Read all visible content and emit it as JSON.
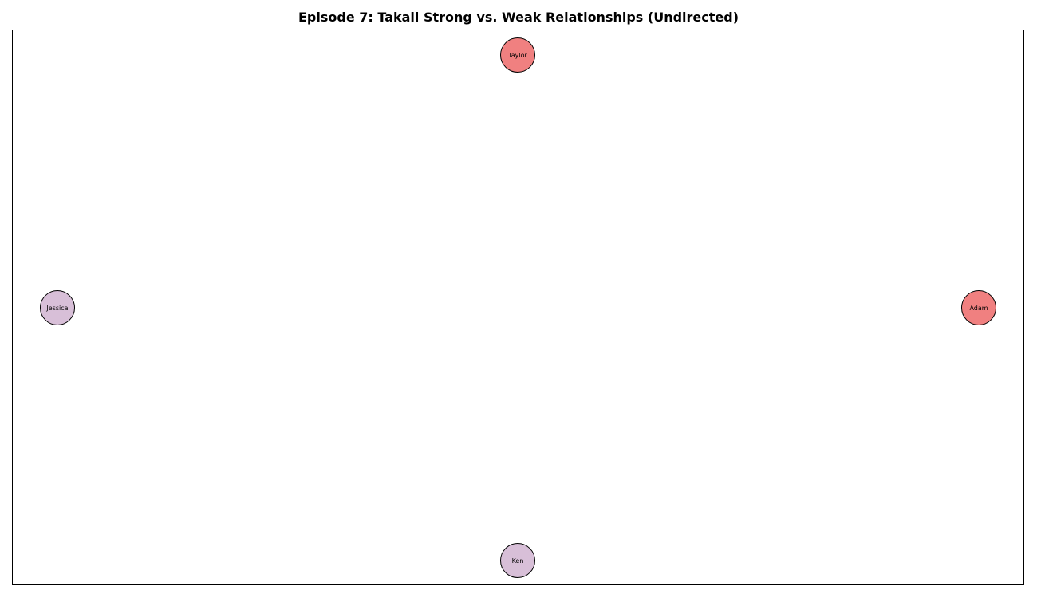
{
  "title": "Episode 7: Takali Strong vs. Weak Relationships (Undirected)",
  "nodes": [
    {
      "id": "taylor",
      "label": "Taylor",
      "color": "#f08080"
    },
    {
      "id": "jessica",
      "label": "Jessica",
      "color": "#d8bfd8"
    },
    {
      "id": "adam",
      "label": "Adam",
      "color": "#f08080"
    },
    {
      "id": "ken",
      "label": "Ken",
      "color": "#d8bfd8"
    }
  ],
  "edges": []
}
